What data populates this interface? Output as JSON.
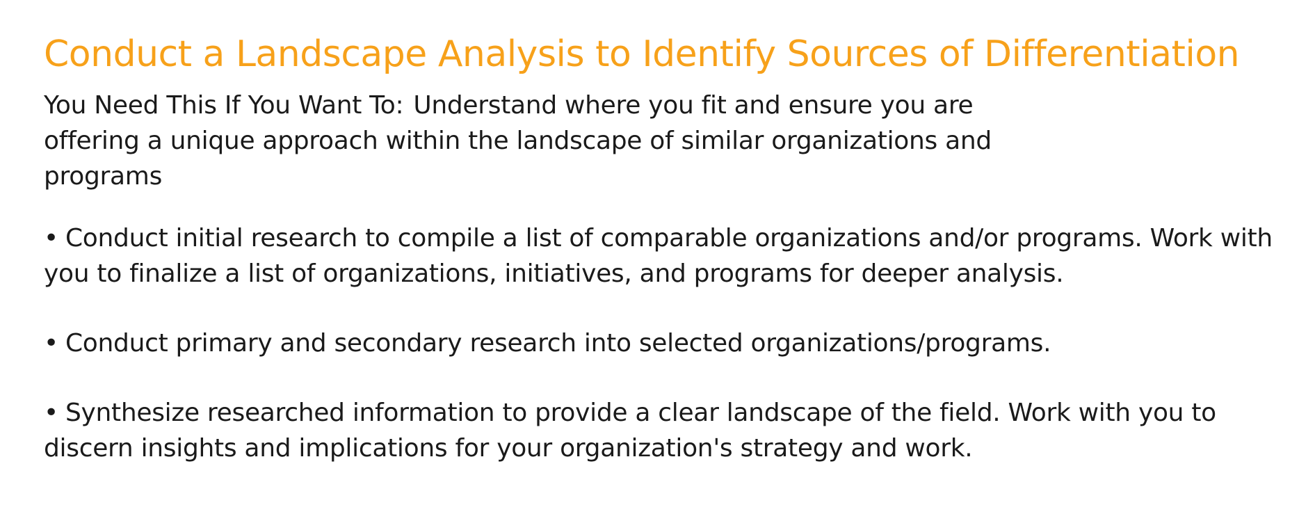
{
  "title": "Conduct a Landscape Analysis to Identify Sources of Differentiation",
  "intro": {
    "lead": "You Need This If You Want To:",
    "text": "Understand where you fit and ensure you are offering a unique approach within the landscape of similar organizations and programs"
  },
  "bullet_symbol": "•",
  "bullets": [
    "Conduct initial research to compile a list of comparable organizations and/or programs. Work with you to finalize a list of organizations, initiatives, and programs for deeper analysis.",
    "Conduct primary and secondary research into selected organizations/programs.",
    "Synthesize researched information to provide a clear landscape of the field. Work with you to discern insights and implications for your organization's strategy and work."
  ],
  "colors": {
    "title": "#f7a11a",
    "text": "#1a1a1a",
    "background": "#ffffff"
  }
}
